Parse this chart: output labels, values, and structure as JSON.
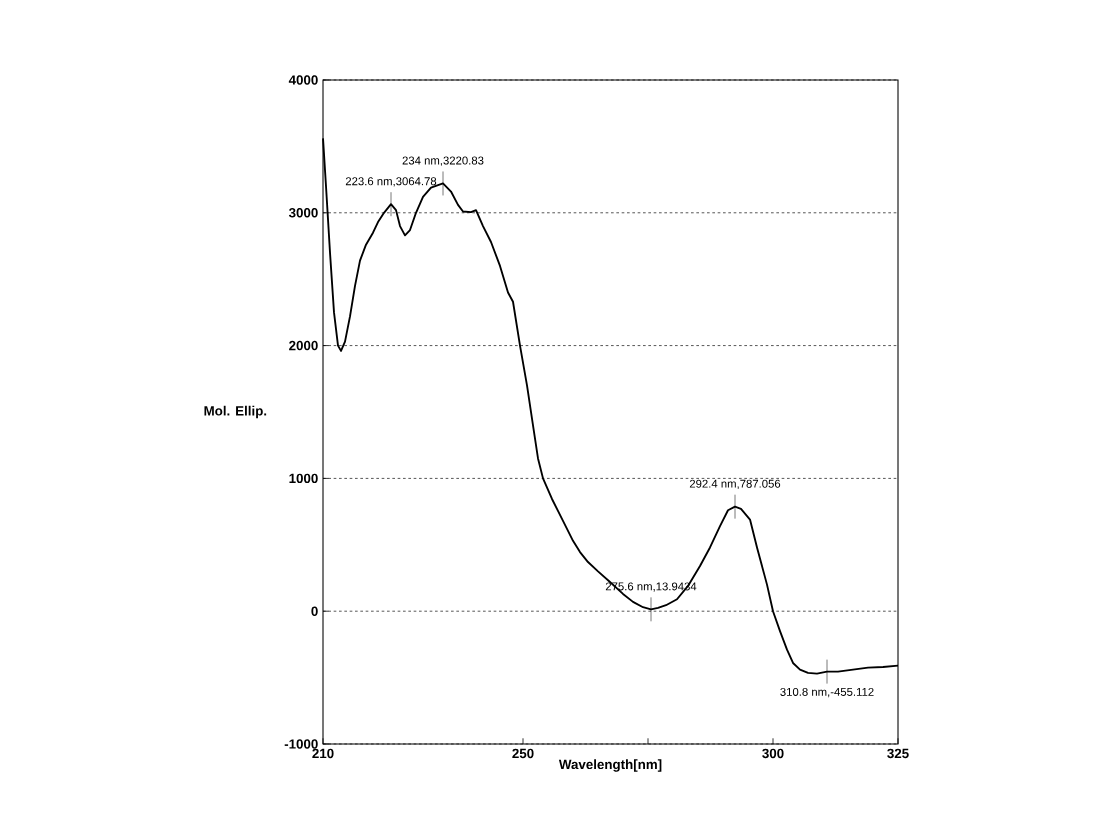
{
  "chart_data": {
    "type": "line",
    "xlabel": "Wavelength[nm]",
    "ylabel": "Mol. Ellip.",
    "xlim": [
      210,
      325
    ],
    "ylim": [
      -1000,
      4000
    ],
    "xticks": [
      210,
      250,
      {
        "value": 275,
        "label": null
      },
      300,
      325
    ],
    "yticks": [
      -1000,
      0,
      1000,
      2000,
      3000,
      4000
    ],
    "grid": "y",
    "line_style": "solid",
    "marker": "none",
    "series": [
      {
        "color": "#000000",
        "x": [
          210,
          210.6,
          211.4,
          212.2,
          213,
          213.6,
          214.4,
          215.4,
          216.4,
          217.4,
          218.6,
          220,
          221,
          222.2,
          223.6,
          224.6,
          225.4,
          226.4,
          227.4,
          228.6,
          230,
          231.6,
          234,
          235.6,
          237,
          238,
          239.6,
          240.6,
          242,
          243.6,
          245.4,
          247,
          248,
          249.4,
          250.8,
          252,
          253,
          254,
          255.8,
          258,
          260,
          261.4,
          263,
          265,
          267.4,
          270,
          272,
          274,
          275.6,
          277,
          278.6,
          280.8,
          283,
          285.4,
          287.4,
          289.4,
          291,
          292.4,
          293.6,
          295.4,
          296.8,
          298.8,
          300,
          301.4,
          302.8,
          304,
          305.4,
          307,
          308.8,
          310.8,
          313,
          316,
          319,
          322,
          325
        ],
        "values": [
          3560,
          3200,
          2700,
          2250,
          2000,
          1960,
          2030,
          2220,
          2450,
          2640,
          2760,
          2850,
          2930,
          3000,
          3065,
          3020,
          2900,
          2830,
          2870,
          3000,
          3120,
          3190,
          3221,
          3160,
          3060,
          3010,
          3005,
          3020,
          2900,
          2780,
          2600,
          2400,
          2330,
          2000,
          1700,
          1400,
          1150,
          1000,
          845,
          680,
          530,
          445,
          370,
          300,
          220,
          130,
          70,
          30,
          14,
          25,
          45,
          90,
          190,
          340,
          480,
          640,
          760,
          787,
          770,
          690,
          480,
          200,
          0,
          -150,
          -290,
          -390,
          -440,
          -465,
          -470,
          -455,
          -455,
          -440,
          -425,
          -420,
          -410
        ]
      }
    ],
    "annotations": [
      {
        "text": "223.6 nm,3064.78",
        "x": 223.6,
        "y": 3064.78
      },
      {
        "text": "234 nm,3220.83",
        "x": 234,
        "y": 3220.83
      },
      {
        "text": "275.6 nm,13.9434",
        "x": 275.6,
        "y": 13.9434
      },
      {
        "text": "292.4 nm,787.056",
        "x": 292.4,
        "y": 787.056
      },
      {
        "text": "310.8 nm,-455.112",
        "x": 310.8,
        "y": -455.112
      }
    ]
  }
}
